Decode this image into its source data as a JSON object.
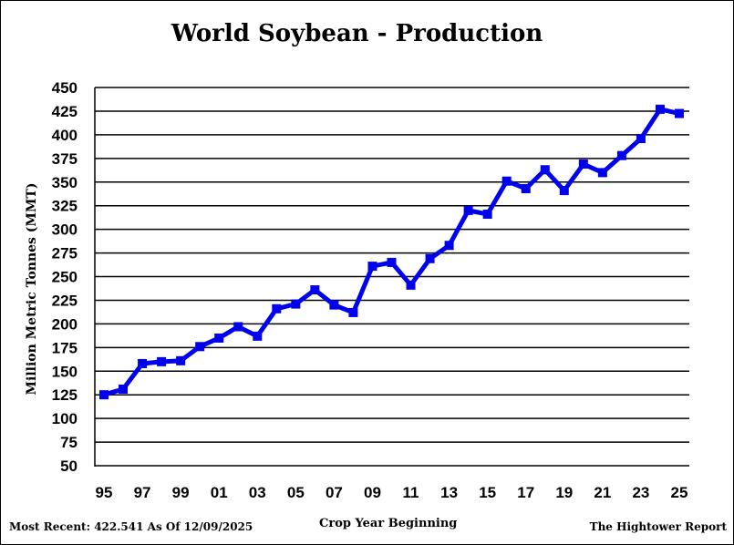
{
  "chart_data": {
    "type": "line",
    "title": "World Soybean - Production",
    "xlabel": "Crop Year Beginning",
    "ylabel": "Million Metric Tonnes (MMT)",
    "ylim": [
      50,
      450
    ],
    "yticks": [
      50,
      75,
      100,
      125,
      150,
      175,
      200,
      225,
      250,
      275,
      300,
      325,
      350,
      375,
      400,
      425,
      450
    ],
    "x_tick_labels": [
      "95",
      "97",
      "99",
      "01",
      "03",
      "05",
      "07",
      "09",
      "11",
      "13",
      "15",
      "17",
      "19",
      "21",
      "23",
      "25"
    ],
    "x": [
      "95",
      "96",
      "97",
      "98",
      "99",
      "00",
      "01",
      "02",
      "03",
      "04",
      "05",
      "06",
      "07",
      "08",
      "09",
      "10",
      "11",
      "12",
      "13",
      "14",
      "15",
      "16",
      "17",
      "18",
      "19",
      "20",
      "21",
      "22",
      "23",
      "24",
      "25"
    ],
    "series": [
      {
        "values": [
          125,
          131,
          158,
          160,
          161,
          176,
          185,
          197,
          187,
          216,
          221,
          236,
          220,
          212,
          261,
          265,
          241,
          269,
          283,
          320,
          316,
          351,
          343,
          363,
          341,
          369,
          360,
          378,
          396,
          427,
          422.5
        ],
        "color": "#0000ee"
      }
    ],
    "grid": "horizontal",
    "footer_left": "Most Recent: 422.541 As Of 12/09/2025",
    "footer_right": "The Hightower Report"
  }
}
